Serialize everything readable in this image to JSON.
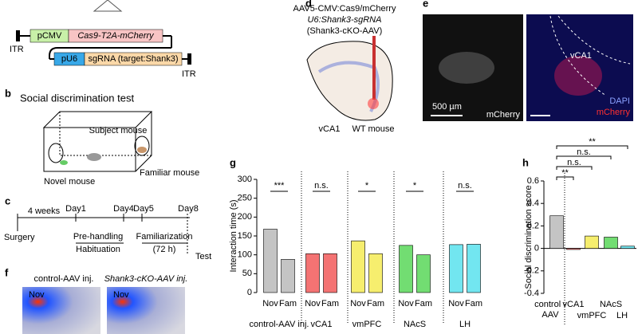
{
  "panels": {
    "a": {
      "itr_left": "ITR",
      "promoter1": "pCMV",
      "gene1": "Cas9-T2A-mCherry",
      "promoter2": "pU6",
      "gene2": "sgRNA (target:Shank3)",
      "itr_right": "ITR"
    },
    "b": {
      "label": "b",
      "title": "Social discrimination test",
      "subject": "Subject mouse",
      "novel": "Novel mouse",
      "familiar": "Familiar mouse"
    },
    "c": {
      "label": "c",
      "weeks": "4 weeks",
      "days": [
        "Day1",
        "Day4",
        "Day5",
        "Day8"
      ],
      "surgery": "Surgery",
      "prehandling": "Pre-handling",
      "habituation": "Habituation",
      "familiarization": "Familiarization",
      "hours": "(72 h)",
      "test": "Test"
    },
    "f": {
      "label": "f",
      "control": "control-AAV inj.",
      "cko": "Shank3-cKO-AAV inj.",
      "nov1": "Nov",
      "nov2": "Nov"
    },
    "d": {
      "label": "d",
      "line1": "AAV5-CMV:Cas9/mCherry",
      "line2": "U6:Shank3-sgRNA",
      "line3": "(Shank3-cKO-AAV)",
      "region": "vCA1",
      "mouse": "WT mouse"
    },
    "e": {
      "label": "e",
      "scale": "500 µm",
      "channel": "mCherry",
      "region": "vCA1",
      "dapi": "DAPI",
      "mcherry": "mCherry"
    }
  },
  "chart_data": [
    {
      "type": "bar",
      "label": "g",
      "y_label": "Interaction time (s)",
      "categories": [
        "Nov",
        "Fam",
        "Nov",
        "Fam",
        "Nov",
        "Fam",
        "Nov",
        "Fam",
        "Nov",
        "Fam"
      ],
      "values": [
        168,
        88,
        103,
        103,
        137,
        103,
        125,
        100,
        127,
        128
      ],
      "colors": [
        "#c4c4c4",
        "#c4c4c4",
        "#f47373",
        "#f47373",
        "#f6ee6e",
        "#f6ee6e",
        "#72dd72",
        "#72dd72",
        "#72e6f0",
        "#72e6f0"
      ],
      "groups": [
        "control-AAV inj.",
        "vCA1",
        "vmPFC",
        "NAcS",
        "LH"
      ],
      "significance": [
        "***",
        "n.s.",
        "*",
        "*",
        "n.s."
      ],
      "ylim": [
        0,
        300
      ],
      "yticks": [
        0,
        50,
        100,
        150,
        200,
        250,
        300
      ]
    },
    {
      "type": "bar",
      "label": "h",
      "y_label": "Social discrimination score",
      "categories": [
        "control -AAV",
        "vCA1",
        "vmPFC",
        "NAcS",
        "LH"
      ],
      "values": [
        0.29,
        -0.01,
        0.11,
        0.1,
        0.02
      ],
      "colors": [
        "#c4c4c4",
        "#f47373",
        "#f6ee6e",
        "#72dd72",
        "#72e6f0"
      ],
      "significance": [
        "**",
        "n.s.",
        "n.s.",
        "**"
      ],
      "ylim": [
        -0.4,
        0.6
      ],
      "yticks": [
        -0.4,
        -0.2,
        0,
        0.2,
        0.4,
        0.6
      ]
    }
  ]
}
